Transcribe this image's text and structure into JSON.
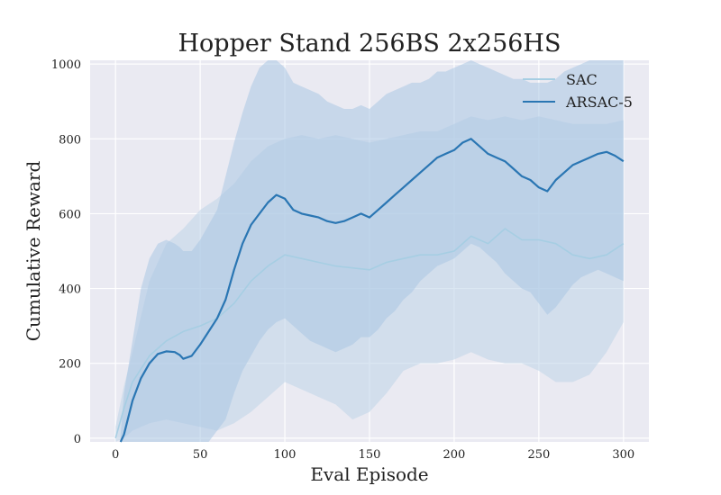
{
  "chart_data": {
    "type": "line",
    "title": "Hopper Stand 256BS 2x256HS",
    "xlabel": "Eval Episode",
    "ylabel": "Cumulative Reward",
    "xlim": [
      -15,
      315
    ],
    "ylim": [
      -10,
      1010
    ],
    "xticks": [
      0,
      50,
      100,
      150,
      200,
      250,
      300
    ],
    "yticks": [
      0,
      200,
      400,
      600,
      800,
      1000
    ],
    "grid": true,
    "legend_position": "top-right",
    "series": [
      {
        "name": "SAC",
        "color": "#a6cee3",
        "fill_color": "#bdd3e8",
        "x": [
          0,
          5,
          10,
          20,
          30,
          40,
          50,
          60,
          70,
          80,
          90,
          100,
          110,
          120,
          130,
          140,
          150,
          160,
          170,
          180,
          190,
          200,
          210,
          220,
          230,
          240,
          250,
          260,
          270,
          280,
          290,
          300
        ],
        "mean": [
          0,
          80,
          150,
          220,
          260,
          285,
          300,
          320,
          360,
          420,
          460,
          490,
          480,
          470,
          460,
          455,
          450,
          470,
          480,
          490,
          490,
          500,
          540,
          520,
          560,
          530,
          530,
          520,
          490,
          480,
          490,
          520
        ],
        "upper": [
          30,
          140,
          230,
          420,
          520,
          560,
          610,
          640,
          680,
          740,
          780,
          800,
          810,
          800,
          810,
          800,
          790,
          800,
          810,
          820,
          820,
          840,
          860,
          850,
          860,
          850,
          860,
          850,
          840,
          840,
          840,
          850
        ],
        "lower": [
          -10,
          0,
          20,
          40,
          50,
          40,
          30,
          20,
          40,
          70,
          110,
          150,
          130,
          110,
          90,
          50,
          70,
          120,
          180,
          200,
          200,
          210,
          230,
          210,
          200,
          200,
          180,
          150,
          150,
          170,
          230,
          310
        ]
      },
      {
        "name": "ARSAC-5",
        "color": "#2a76b3",
        "fill_color": "#a9c6e3",
        "x": [
          3,
          5,
          10,
          15,
          20,
          25,
          30,
          35,
          38,
          40,
          45,
          50,
          55,
          60,
          65,
          70,
          75,
          80,
          85,
          90,
          95,
          100,
          105,
          110,
          115,
          120,
          125,
          130,
          135,
          140,
          145,
          150,
          155,
          160,
          165,
          170,
          175,
          180,
          185,
          190,
          195,
          200,
          205,
          210,
          215,
          220,
          225,
          230,
          235,
          240,
          245,
          250,
          255,
          260,
          265,
          270,
          275,
          280,
          285,
          290,
          295,
          300
        ],
        "mean": [
          -20,
          10,
          100,
          160,
          200,
          225,
          232,
          230,
          222,
          212,
          220,
          250,
          285,
          320,
          370,
          450,
          520,
          570,
          600,
          630,
          650,
          640,
          610,
          600,
          595,
          590,
          580,
          575,
          580,
          590,
          600,
          590,
          610,
          630,
          650,
          670,
          690,
          710,
          730,
          750,
          760,
          770,
          790,
          800,
          780,
          760,
          750,
          740,
          720,
          700,
          690,
          670,
          660,
          690,
          710,
          730,
          740,
          750,
          760,
          765,
          755,
          740
        ],
        "upper": [
          10,
          120,
          260,
          400,
          480,
          520,
          530,
          520,
          510,
          500,
          500,
          530,
          570,
          610,
          700,
          790,
          870,
          940,
          990,
          1010,
          1010,
          990,
          950,
          940,
          930,
          920,
          900,
          890,
          880,
          880,
          890,
          880,
          900,
          920,
          930,
          940,
          950,
          950,
          960,
          980,
          980,
          990,
          1000,
          1010,
          1000,
          990,
          980,
          970,
          960,
          960,
          950,
          950,
          950,
          960,
          980,
          990,
          1000,
          1010,
          1010,
          1010,
          1010,
          1010
        ],
        "lower": [
          -50,
          -60,
          -40,
          -20,
          -10,
          -20,
          -40,
          -60,
          -70,
          -75,
          -60,
          -40,
          -10,
          20,
          50,
          120,
          180,
          220,
          260,
          290,
          310,
          320,
          300,
          280,
          260,
          250,
          240,
          230,
          240,
          250,
          270,
          270,
          290,
          320,
          340,
          370,
          390,
          420,
          440,
          460,
          470,
          480,
          500,
          520,
          510,
          490,
          470,
          440,
          420,
          400,
          390,
          360,
          330,
          350,
          380,
          410,
          430,
          440,
          450,
          440,
          430,
          420
        ]
      }
    ]
  }
}
